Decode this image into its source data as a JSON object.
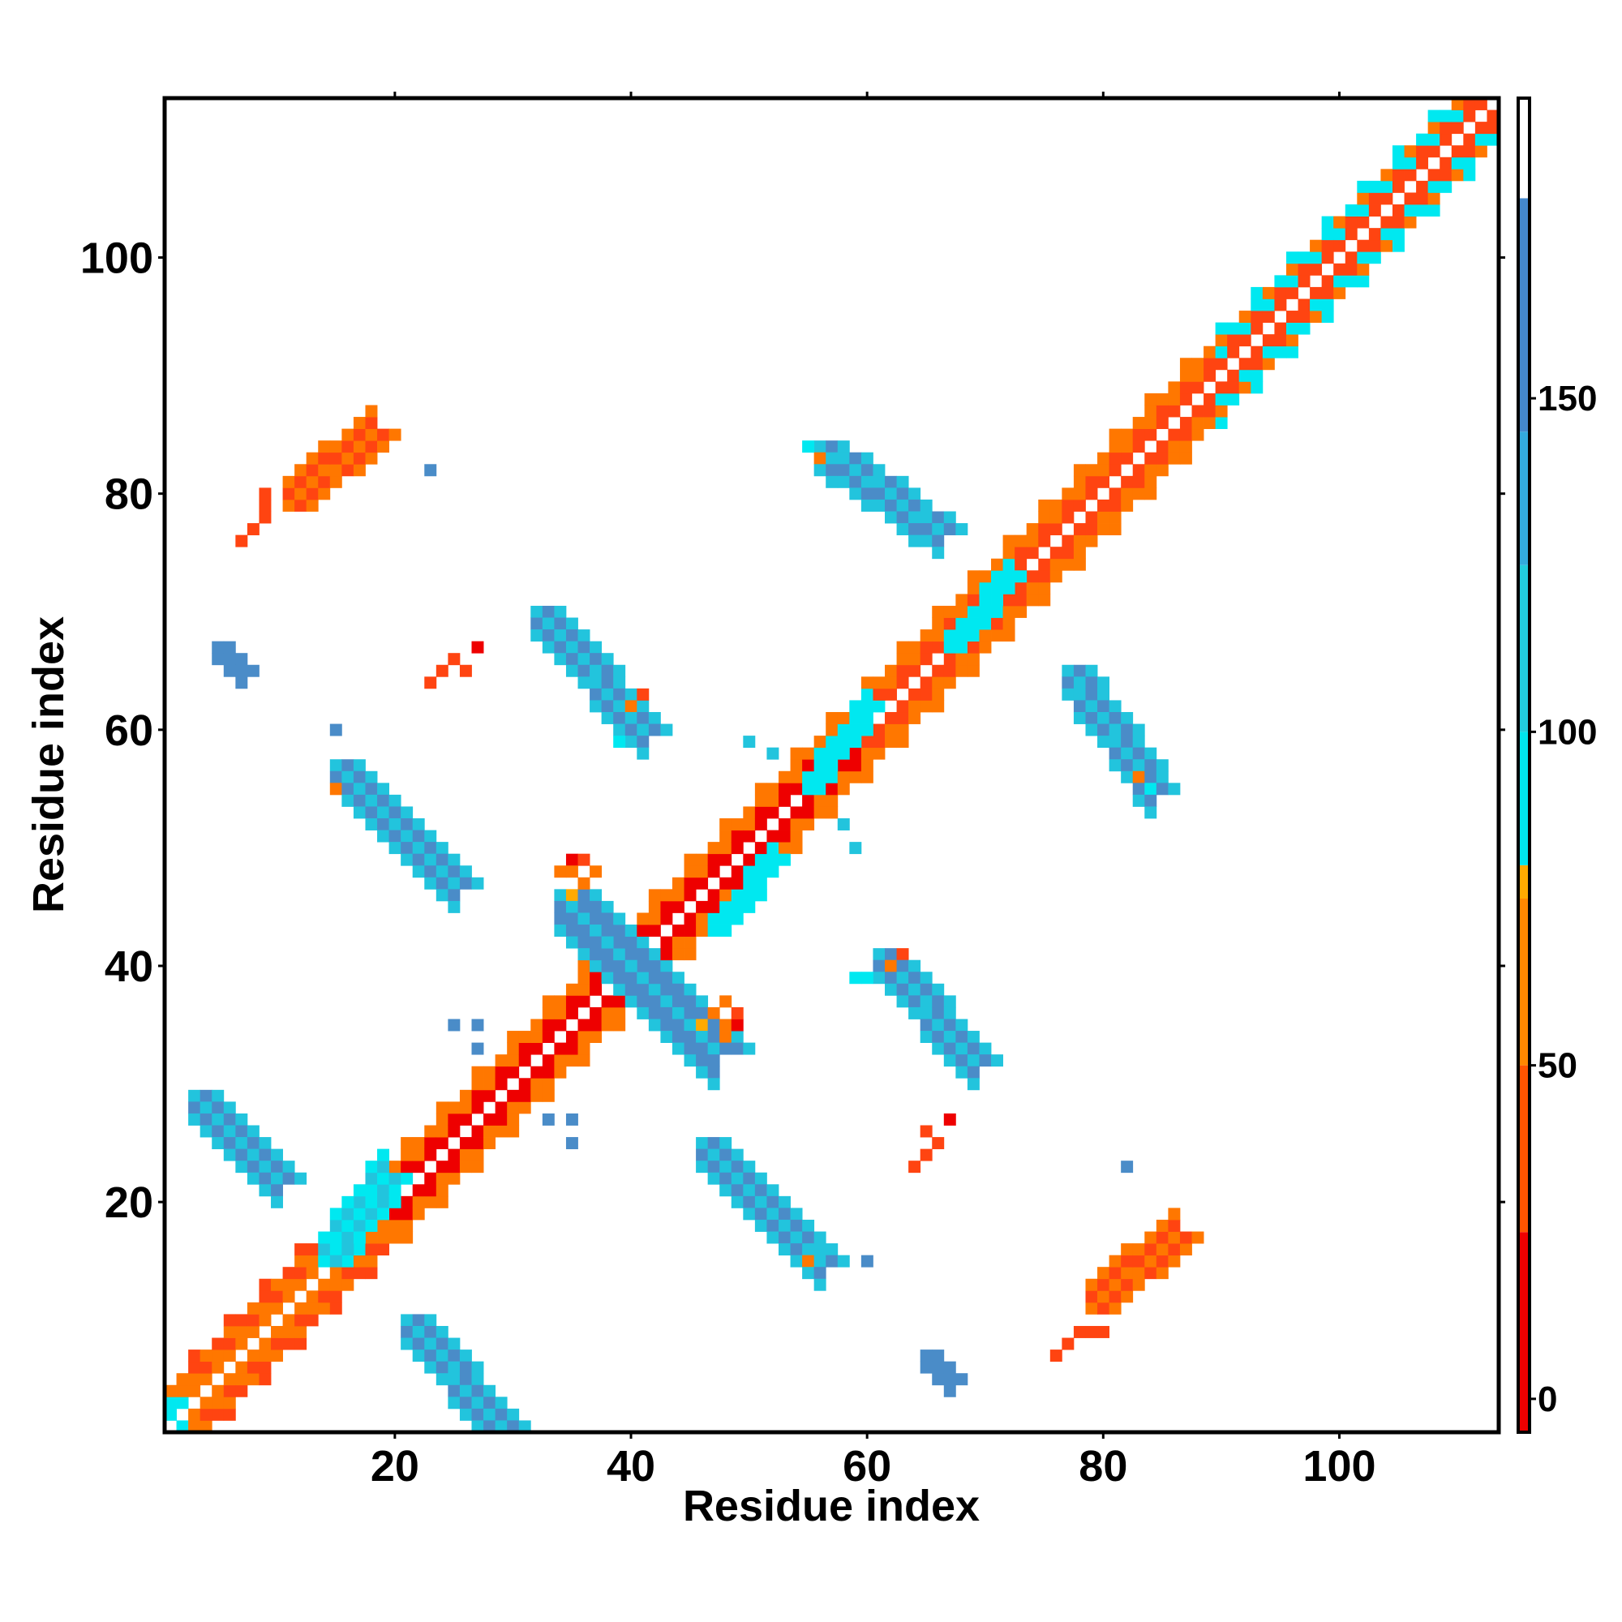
{
  "chart_data": {
    "type": "heatmap",
    "title": "",
    "xlabel": "Residue index",
    "ylabel": "Residue index",
    "xlim": [
      1,
      113
    ],
    "ylim": [
      1,
      113
    ],
    "xticks": [
      20,
      40,
      60,
      80,
      100
    ],
    "yticks": [
      20,
      40,
      60,
      80,
      100
    ],
    "x_tick_labels": [
      "20",
      "40",
      "60",
      "80",
      "100"
    ],
    "y_tick_labels": [
      "20",
      "40",
      "60",
      "80",
      "100"
    ],
    "colorbar": {
      "range": [
        -5,
        195
      ],
      "ticks": [
        0,
        50,
        100,
        150
      ],
      "tick_labels": [
        "0",
        "50",
        "100",
        "150"
      ],
      "bands": [
        {
          "from": -5,
          "to": 25,
          "color": "#ee0000"
        },
        {
          "from": 25,
          "to": 50,
          "color": "#ff5500"
        },
        {
          "from": 50,
          "to": 75,
          "color": "#ff8800"
        },
        {
          "from": 75,
          "to": 80,
          "color": "#ffaa00"
        },
        {
          "from": 80,
          "to": 100,
          "color": "#00e5ee"
        },
        {
          "from": 100,
          "to": 125,
          "color": "#22ccdd"
        },
        {
          "from": 125,
          "to": 145,
          "color": "#33aadd"
        },
        {
          "from": 145,
          "to": 180,
          "color": "#4488cc"
        },
        {
          "from": 180,
          "to": 195,
          "color": "#ffffff"
        }
      ]
    },
    "value_colors": {
      "red": "#ee0000",
      "red_orange": "#ff4411",
      "orange": "#ff7700",
      "amber": "#ffaa00",
      "cyan": "#00e8f0",
      "light_blue": "#22c4dd",
      "steel_blue": "#4a8cc8"
    },
    "note_cells": "x and y are residue indices; c is a category of contact value mapped to colorbar bands",
    "diagonal": {
      "range": [
        1,
        113
      ],
      "segments": [
        {
          "from": 1,
          "to": 3,
          "near": "cyan",
          "mid": "orange"
        },
        {
          "from": 3,
          "to": 20,
          "near": "orange",
          "mid": "red_orange"
        },
        {
          "from": 20,
          "to": 40,
          "near": "red",
          "mid": "orange"
        },
        {
          "from": 40,
          "to": 60,
          "near": "red",
          "mid": "orange"
        },
        {
          "from": 60,
          "to": 90,
          "near": "red_orange",
          "mid": "orange"
        },
        {
          "from": 90,
          "to": 113,
          "near": "red_orange",
          "mid": "cyan"
        }
      ]
    },
    "blobs": [
      {
        "x": [
          3,
          10
        ],
        "y": [
          22,
          29
        ],
        "slope": -1,
        "width": 3,
        "color": "steel_blue",
        "edge": "light_blue"
      },
      {
        "x": [
          21,
          29
        ],
        "y": [
          1,
          10
        ],
        "slope": -1,
        "width": 3,
        "color": "steel_blue",
        "edge": "light_blue"
      },
      {
        "x": [
          15,
          25
        ],
        "y": [
          47,
          57
        ],
        "slope": -1,
        "width": 3,
        "color": "steel_blue",
        "edge": "light_blue"
      },
      {
        "x": [
          46,
          56
        ],
        "y": [
          15,
          25
        ],
        "slope": -1,
        "width": 3,
        "color": "steel_blue",
        "edge": "light_blue"
      },
      {
        "x": [
          32,
          41
        ],
        "y": [
          60,
          70
        ],
        "slope": -1,
        "width": 3,
        "color": "steel_blue",
        "edge": "light_blue"
      },
      {
        "x": [
          61,
          69
        ],
        "y": [
          32,
          41
        ],
        "slope": -1,
        "width": 3,
        "color": "steel_blue",
        "edge": "light_blue"
      },
      {
        "x": [
          56,
          66
        ],
        "y": [
          77,
          84
        ],
        "slope": -1,
        "width": 3,
        "color": "steel_blue",
        "edge": "light_blue"
      },
      {
        "x": [
          77,
          84
        ],
        "y": [
          55,
          65
        ],
        "slope": -1,
        "width": 3,
        "color": "steel_blue",
        "edge": "light_blue"
      },
      {
        "x": [
          34,
          40
        ],
        "y": [
          40,
          46
        ],
        "slope": -1,
        "width": 4,
        "color": "steel_blue",
        "edge": "light_blue"
      },
      {
        "x": [
          40,
          47
        ],
        "y": [
          33,
          40
        ],
        "slope": -1,
        "width": 4,
        "color": "steel_blue",
        "edge": "light_blue"
      },
      {
        "x": [
          11,
          18
        ],
        "y": [
          79,
          85
        ],
        "slope": 1,
        "width": 3,
        "color": "red_orange",
        "edge": "orange"
      },
      {
        "x": [
          79,
          86
        ],
        "y": [
          11,
          17
        ],
        "slope": 1,
        "width": 3,
        "color": "red_orange",
        "edge": "orange"
      },
      {
        "x": [
          14,
          19
        ],
        "y": [
          15,
          22
        ],
        "slope": 1,
        "width": 3,
        "color": "light_blue",
        "edge": "cyan"
      },
      {
        "x": [
          47,
          52
        ],
        "y": [
          43,
          49
        ],
        "slope": 1,
        "width": 2,
        "color": "light_blue",
        "edge": "cyan"
      },
      {
        "x": [
          55,
          60
        ],
        "y": [
          55,
          62
        ],
        "slope": 1,
        "width": 2,
        "color": "light_blue",
        "edge": "cyan"
      },
      {
        "x": [
          67,
          72
        ],
        "y": [
          67,
          73
        ],
        "slope": 1,
        "width": 2,
        "color": "light_blue",
        "edge": "cyan"
      },
      {
        "x": [
          5,
          7
        ],
        "y": [
          65,
          67
        ],
        "slope": -1,
        "width": 2,
        "color": "light_blue",
        "edge": "steel_blue"
      },
      {
        "x": [
          65,
          67
        ],
        "y": [
          5,
          7
        ],
        "slope": -1,
        "width": 2,
        "color": "light_blue",
        "edge": "steel_blue"
      }
    ],
    "cells": [
      {
        "x": 7,
        "y": 76,
        "c": "red_orange"
      },
      {
        "x": 8,
        "y": 77,
        "c": "red_orange"
      },
      {
        "x": 9,
        "y": 78,
        "c": "red_orange"
      },
      {
        "x": 9,
        "y": 79,
        "c": "red_orange"
      },
      {
        "x": 9,
        "y": 80,
        "c": "red_orange"
      },
      {
        "x": 76,
        "y": 7,
        "c": "red_orange"
      },
      {
        "x": 77,
        "y": 8,
        "c": "red_orange"
      },
      {
        "x": 78,
        "y": 9,
        "c": "red_orange"
      },
      {
        "x": 79,
        "y": 9,
        "c": "red_orange"
      },
      {
        "x": 80,
        "y": 9,
        "c": "red_orange"
      },
      {
        "x": 23,
        "y": 82,
        "c": "steel_blue"
      },
      {
        "x": 82,
        "y": 23,
        "c": "steel_blue"
      },
      {
        "x": 15,
        "y": 60,
        "c": "steel_blue"
      },
      {
        "x": 60,
        "y": 15,
        "c": "steel_blue"
      },
      {
        "x": 23,
        "y": 64,
        "c": "red_orange"
      },
      {
        "x": 24,
        "y": 65,
        "c": "red_orange"
      },
      {
        "x": 25,
        "y": 66,
        "c": "red_orange"
      },
      {
        "x": 26,
        "y": 65,
        "c": "red_orange"
      },
      {
        "x": 27,
        "y": 67,
        "c": "red"
      },
      {
        "x": 64,
        "y": 23,
        "c": "red_orange"
      },
      {
        "x": 65,
        "y": 24,
        "c": "red_orange"
      },
      {
        "x": 66,
        "y": 25,
        "c": "red_orange"
      },
      {
        "x": 65,
        "y": 26,
        "c": "red_orange"
      },
      {
        "x": 67,
        "y": 27,
        "c": "red"
      },
      {
        "x": 25,
        "y": 35,
        "c": "steel_blue"
      },
      {
        "x": 27,
        "y": 35,
        "c": "steel_blue"
      },
      {
        "x": 27,
        "y": 33,
        "c": "steel_blue"
      },
      {
        "x": 33,
        "y": 27,
        "c": "steel_blue"
      },
      {
        "x": 35,
        "y": 27,
        "c": "steel_blue"
      },
      {
        "x": 35,
        "y": 25,
        "c": "steel_blue"
      },
      {
        "x": 39,
        "y": 59,
        "c": "cyan"
      },
      {
        "x": 59,
        "y": 39,
        "c": "cyan"
      },
      {
        "x": 41,
        "y": 63,
        "c": "red_orange"
      },
      {
        "x": 63,
        "y": 41,
        "c": "red_orange"
      },
      {
        "x": 40,
        "y": 62,
        "c": "orange"
      },
      {
        "x": 62,
        "y": 40,
        "c": "orange"
      },
      {
        "x": 50,
        "y": 59,
        "c": "light_blue"
      },
      {
        "x": 59,
        "y": 50,
        "c": "light_blue"
      },
      {
        "x": 58,
        "y": 52,
        "c": "light_blue"
      },
      {
        "x": 52,
        "y": 58,
        "c": "light_blue"
      },
      {
        "x": 35,
        "y": 49,
        "c": "red"
      },
      {
        "x": 36,
        "y": 49,
        "c": "red_orange"
      },
      {
        "x": 34,
        "y": 48,
        "c": "orange"
      },
      {
        "x": 35,
        "y": 48,
        "c": "orange"
      },
      {
        "x": 49,
        "y": 35,
        "c": "red"
      },
      {
        "x": 49,
        "y": 36,
        "c": "red_orange"
      },
      {
        "x": 48,
        "y": 34,
        "c": "orange"
      },
      {
        "x": 48,
        "y": 35,
        "c": "orange"
      },
      {
        "x": 47,
        "y": 36,
        "c": "orange"
      },
      {
        "x": 48,
        "y": 37,
        "c": "orange"
      },
      {
        "x": 46,
        "y": 35,
        "c": "amber"
      },
      {
        "x": 36,
        "y": 47,
        "c": "orange"
      },
      {
        "x": 37,
        "y": 48,
        "c": "orange"
      },
      {
        "x": 35,
        "y": 46,
        "c": "amber"
      },
      {
        "x": 15,
        "y": 55,
        "c": "orange"
      },
      {
        "x": 16,
        "y": 56,
        "c": "light_blue"
      },
      {
        "x": 55,
        "y": 15,
        "c": "orange"
      },
      {
        "x": 56,
        "y": 16,
        "c": "light_blue"
      },
      {
        "x": 84,
        "y": 55,
        "c": "cyan"
      },
      {
        "x": 55,
        "y": 84,
        "c": "cyan"
      },
      {
        "x": 56,
        "y": 83,
        "c": "orange"
      },
      {
        "x": 83,
        "y": 56,
        "c": "orange"
      },
      {
        "x": 60,
        "y": 39,
        "c": "cyan"
      }
    ]
  }
}
